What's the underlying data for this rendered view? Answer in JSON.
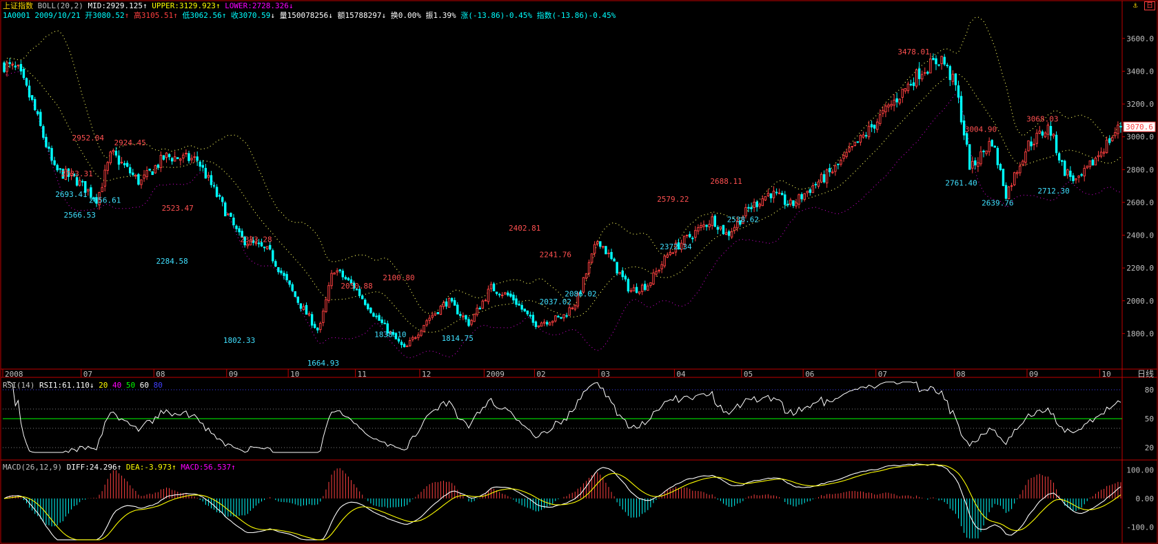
{
  "header": {
    "index_name": "上证指数",
    "indicator": "BOLL(20,2)",
    "mid": "MID:2929.125",
    "upper": "UPPER:3129.923",
    "lower": "LOWER:2728.326",
    "code_date": "1A0001  2009/10/21",
    "open": "开3080.52",
    "high": "高3105.51",
    "low": "低3062.56",
    "close": "收3070.59",
    "volume": "量150078256",
    "amount": "额15788297",
    "turnover": "换0.00%",
    "amplitude": "振1.39%",
    "change": "涨(-13.86)-0.45%",
    "index_change": "指数(-13.86)-0.45%"
  },
  "top_right": {
    "icons": [
      "anchor-icon",
      "window-icon"
    ],
    "label": "日"
  },
  "rsi_header": {
    "name": "RSI(14)",
    "rsi1": "RSI1:61.110",
    "levels": [
      "20",
      "40",
      "50",
      "60",
      "80"
    ]
  },
  "macd_header": {
    "name": "MACD(26,12,9)",
    "diff": "DIFF:24.296",
    "dea": "DEA:-3.973",
    "macd": "MACD:56.537"
  },
  "period_label": "日线",
  "current_price_tag": "3070.6",
  "colors": {
    "up": "#ff4040",
    "down": "#00ffff",
    "border": "#c00000",
    "mid": "#ffff60",
    "upper": "#ffff60",
    "lower": "#c000c0",
    "rsi": "#ffffff",
    "diff": "#ffffff",
    "dea": "#ffff00",
    "axis_text": "#c0c0c0",
    "price_label_high": "#ff5050",
    "price_label_low": "#40e0ff"
  },
  "chart_data": [
    {
      "type": "candlestick",
      "title": "上证指数 BOLL(20,2)",
      "ylim": [
        1600,
        3700
      ],
      "y_ticks": [
        "3600.0",
        "3400.0",
        "3200.0",
        "3000.0",
        "2800.0",
        "2600.0",
        "2400.0",
        "2200.0",
        "2000.0",
        "1800.0"
      ],
      "x_labels": [
        "2008",
        "07",
        "08",
        "09",
        "10",
        "11",
        "12",
        "2009",
        "02",
        "03",
        "04",
        "05",
        "06",
        "07",
        "08",
        "09",
        "10"
      ],
      "price_path": [
        [
          0,
          3440
        ],
        [
          4,
          3400
        ],
        [
          8,
          3200
        ],
        [
          14,
          2800
        ],
        [
          20,
          2740
        ],
        [
          26,
          2620
        ],
        [
          30,
          2900
        ],
        [
          38,
          2720
        ],
        [
          45,
          2880
        ],
        [
          54,
          2860
        ],
        [
          58,
          2700
        ],
        [
          66,
          2380
        ],
        [
          74,
          2300
        ],
        [
          82,
          2000
        ],
        [
          88,
          1810
        ],
        [
          92,
          2200
        ],
        [
          98,
          2080
        ],
        [
          104,
          1900
        ],
        [
          112,
          1700
        ],
        [
          118,
          1880
        ],
        [
          124,
          2000
        ],
        [
          130,
          1860
        ],
        [
          136,
          2080
        ],
        [
          142,
          2020
        ],
        [
          148,
          1860
        ],
        [
          156,
          1900
        ],
        [
          160,
          2000
        ],
        [
          166,
          2380
        ],
        [
          171,
          2200
        ],
        [
          175,
          2060
        ],
        [
          180,
          2100
        ],
        [
          186,
          2300
        ],
        [
          192,
          2400
        ],
        [
          198,
          2500
        ],
        [
          202,
          2400
        ],
        [
          208,
          2560
        ],
        [
          214,
          2660
        ],
        [
          220,
          2580
        ],
        [
          226,
          2700
        ],
        [
          232,
          2800
        ],
        [
          240,
          3000
        ],
        [
          248,
          3200
        ],
        [
          256,
          3400
        ],
        [
          262,
          3480
        ],
        [
          266,
          3300
        ],
        [
          270,
          2800
        ],
        [
          276,
          2980
        ],
        [
          280,
          2650
        ],
        [
          286,
          2950
        ],
        [
          292,
          3060
        ],
        [
          296,
          2800
        ],
        [
          300,
          2720
        ],
        [
          306,
          2900
        ],
        [
          312,
          3070
        ]
      ],
      "annotations_high": [
        {
          "text": "2952.04",
          "i": 30,
          "v": 2952
        },
        {
          "text": "2924.45",
          "i": 45,
          "v": 2924
        },
        {
          "text": "2733.31",
          "i": 26,
          "v": 2733
        },
        {
          "text": "2523.47",
          "i": 62,
          "v": 2523
        },
        {
          "text": "2333.28",
          "i": 90,
          "v": 2333
        },
        {
          "text": "2050.88",
          "i": 126,
          "v": 2050
        },
        {
          "text": "2100.80",
          "i": 141,
          "v": 2100
        },
        {
          "text": "2402.81",
          "i": 186,
          "v": 2402
        },
        {
          "text": "2241.76",
          "i": 197,
          "v": 2241
        },
        {
          "text": "2579.22",
          "i": 239,
          "v": 2579
        },
        {
          "text": "2688.11",
          "i": 258,
          "v": 2688
        },
        {
          "text": "3478.01",
          "i": 325,
          "v": 3478
        },
        {
          "text": "3004.90",
          "i": 349,
          "v": 3004
        },
        {
          "text": "3068.03",
          "i": 371,
          "v": 3068
        }
      ],
      "annotations_low": [
        {
          "text": "2693.41",
          "i": 24,
          "v": 2693
        },
        {
          "text": "2656.61",
          "i": 36,
          "v": 2656
        },
        {
          "text": "2566.53",
          "i": 27,
          "v": 2566
        },
        {
          "text": "2284.58",
          "i": 60,
          "v": 2284
        },
        {
          "text": "1802.33",
          "i": 84,
          "v": 1802
        },
        {
          "text": "1664.93",
          "i": 114,
          "v": 1664
        },
        {
          "text": "1838.10",
          "i": 138,
          "v": 1838
        },
        {
          "text": "1814.75",
          "i": 162,
          "v": 1814
        },
        {
          "text": "2037.02",
          "i": 197,
          "v": 2037
        },
        {
          "text": "2086.02",
          "i": 206,
          "v": 2086
        },
        {
          "text": "2372.34",
          "i": 240,
          "v": 2372
        },
        {
          "text": "2538.62",
          "i": 264,
          "v": 2538
        },
        {
          "text": "2761.40",
          "i": 342,
          "v": 2761
        },
        {
          "text": "2639.76",
          "i": 355,
          "v": 2639
        },
        {
          "text": "2712.30",
          "i": 375,
          "v": 2712
        }
      ]
    },
    {
      "type": "line",
      "title": "RSI(14)",
      "ylim": [
        10,
        90
      ],
      "y_ticks": [
        "80",
        "50",
        "20"
      ],
      "reference_lines": [
        80,
        60,
        50,
        40,
        20
      ]
    },
    {
      "type": "bar",
      "title": "MACD(26,12,9)",
      "ylim": [
        -150,
        130
      ],
      "y_ticks": [
        "100.00",
        "0.00",
        "-100.0"
      ]
    }
  ]
}
